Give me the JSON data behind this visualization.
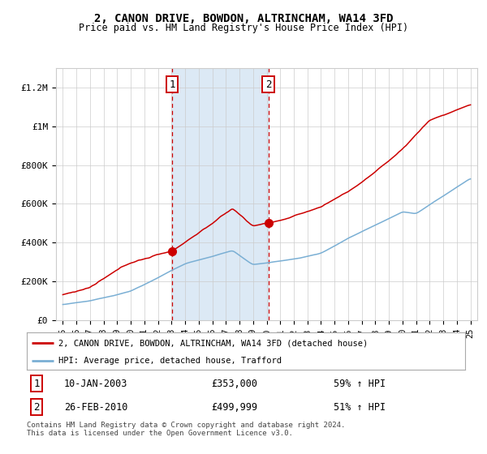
{
  "title": "2, CANON DRIVE, BOWDON, ALTRINCHAM, WA14 3FD",
  "subtitle": "Price paid vs. HM Land Registry's House Price Index (HPI)",
  "sale1_date": 2003.04,
  "sale1_price": 353000,
  "sale1_text": "10-JAN-2003",
  "sale1_hpi_text": "59% ↑ HPI",
  "sale2_date": 2010.12,
  "sale2_price": 499999,
  "sale2_text": "26-FEB-2010",
  "sale2_hpi_text": "51% ↑ HPI",
  "red_line_color": "#cc0000",
  "blue_line_color": "#7aafd4",
  "shade_color": "#dce9f5",
  "background_color": "#ffffff",
  "grid_color": "#cccccc",
  "legend_line1": "2, CANON DRIVE, BOWDON, ALTRINCHAM, WA14 3FD (detached house)",
  "legend_line2": "HPI: Average price, detached house, Trafford",
  "footer": "Contains HM Land Registry data © Crown copyright and database right 2024.\nThis data is licensed under the Open Government Licence v3.0.",
  "ylim": [
    0,
    1300000
  ],
  "yticks": [
    0,
    200000,
    400000,
    600000,
    800000,
    1000000,
    1200000
  ],
  "ytick_labels": [
    "£0",
    "£200K",
    "£400K",
    "£600K",
    "£800K",
    "£1M",
    "£1.2M"
  ]
}
